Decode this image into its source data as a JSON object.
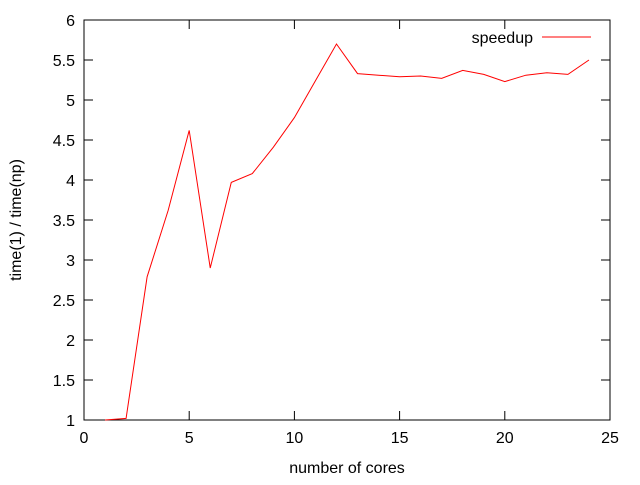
{
  "chart_data": {
    "type": "line",
    "title": "",
    "xlabel": "number of cores",
    "ylabel": "time(1) / time(np)",
    "xlim": [
      0,
      25
    ],
    "ylim": [
      1,
      6
    ],
    "x_ticks": [
      0,
      5,
      10,
      15,
      20,
      25
    ],
    "y_ticks": [
      1,
      1.5,
      2,
      2.5,
      3,
      3.5,
      4,
      4.5,
      5,
      5.5,
      6
    ],
    "x_tick_labels": [
      "0",
      "5",
      "10",
      "15",
      "20",
      "25"
    ],
    "y_tick_labels": [
      "1",
      "1.5",
      "2",
      "2.5",
      "3",
      "3.5",
      "4",
      "4.5",
      "5",
      "5.5",
      "6"
    ],
    "grid": false,
    "legend_position": "top-right",
    "series": [
      {
        "name": "speedup",
        "color": "#ff0000",
        "x": [
          1,
          2,
          3,
          4,
          5,
          6,
          7,
          8,
          9,
          10,
          11,
          12,
          13,
          14,
          15,
          16,
          17,
          18,
          19,
          20,
          21,
          22,
          23,
          24
        ],
        "y": [
          1.0,
          1.02,
          2.79,
          3.62,
          4.62,
          2.9,
          3.97,
          4.08,
          4.41,
          4.78,
          5.24,
          5.7,
          5.33,
          5.31,
          5.29,
          5.3,
          5.27,
          5.37,
          5.32,
          5.23,
          5.31,
          5.34,
          5.32,
          5.5
        ]
      }
    ]
  }
}
